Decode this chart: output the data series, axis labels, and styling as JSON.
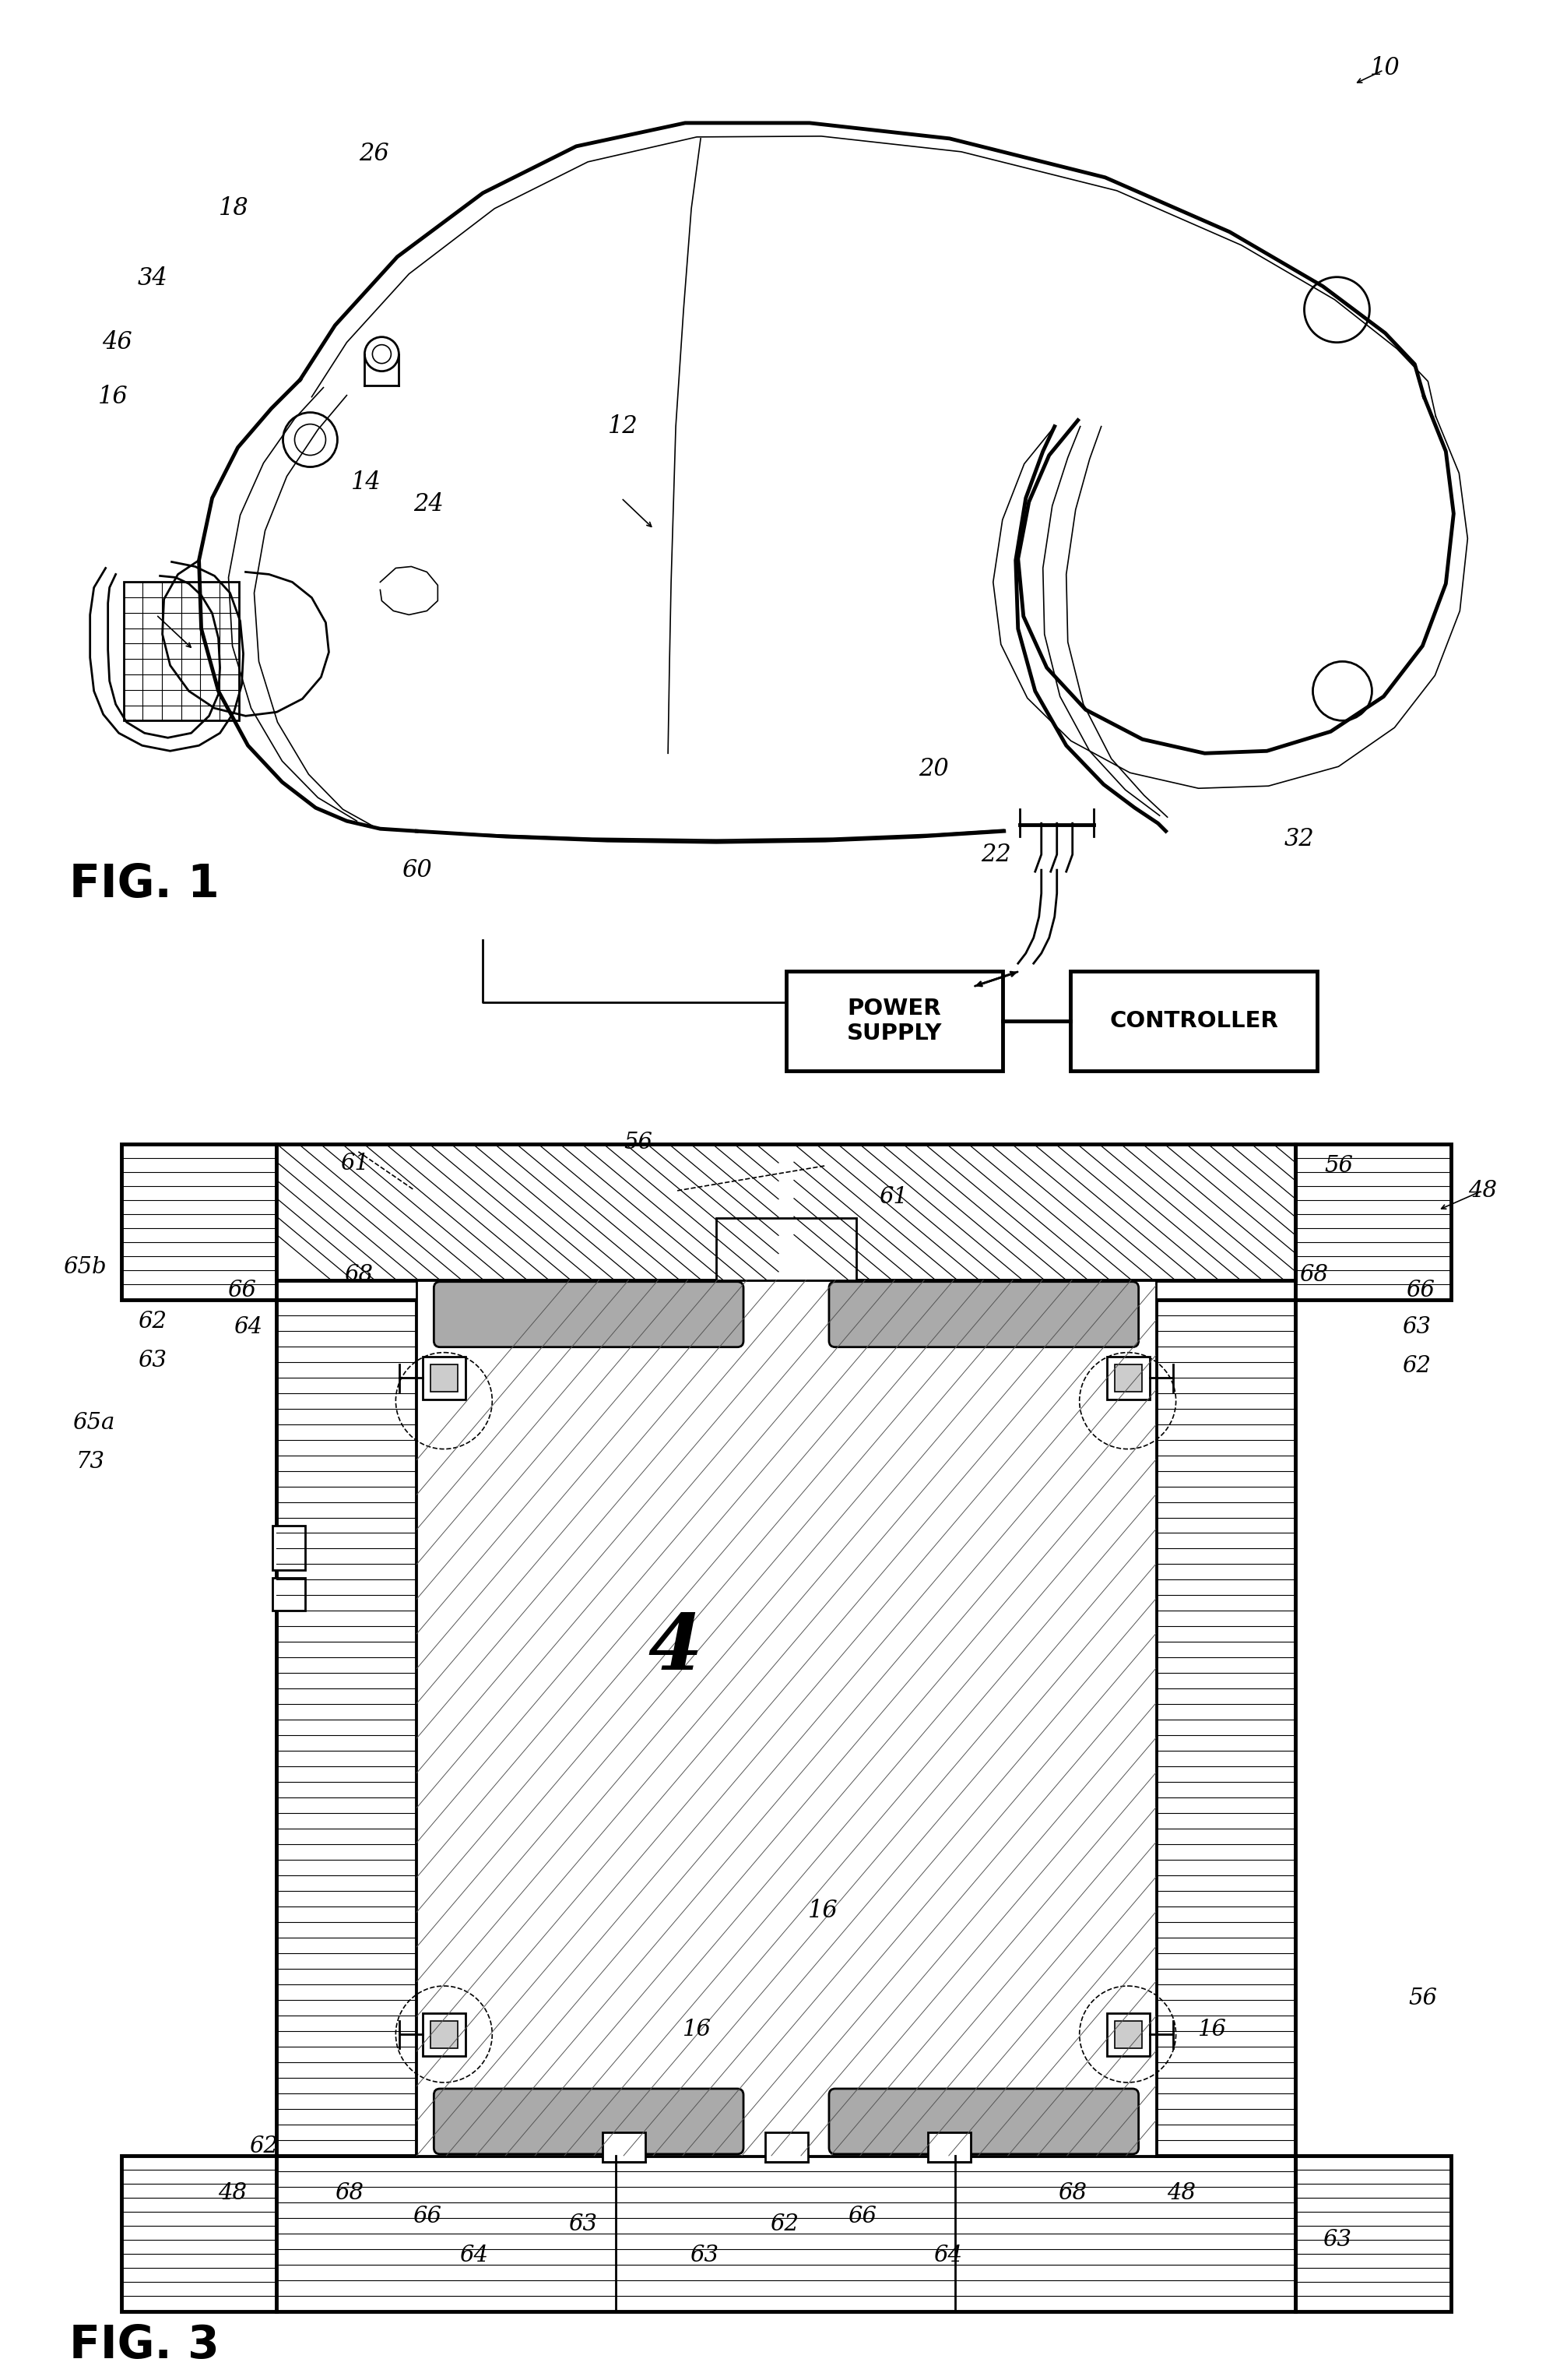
{
  "fig_width": 20.04,
  "fig_height": 30.56,
  "bg_color": "#ffffff",
  "lc": "#000000",
  "fig1_label": "FIG. 1",
  "fig3_label": "FIG. 3",
  "power_supply_text": "POWER\nSUPPLY",
  "controller_text": "CONTROLLER",
  "fig1_refs": [
    [
      1780,
      88,
      "10"
    ],
    [
      480,
      198,
      "26"
    ],
    [
      300,
      268,
      "18"
    ],
    [
      195,
      358,
      "34"
    ],
    [
      150,
      440,
      "46"
    ],
    [
      145,
      510,
      "16"
    ],
    [
      800,
      548,
      "12"
    ],
    [
      470,
      620,
      "14"
    ],
    [
      550,
      648,
      "24"
    ],
    [
      1200,
      988,
      "20"
    ],
    [
      1280,
      1098,
      "22"
    ],
    [
      1670,
      1078,
      "32"
    ],
    [
      535,
      1118,
      "60"
    ]
  ],
  "fig3_refs": [
    [
      455,
      1495,
      "61"
    ],
    [
      820,
      1468,
      "56"
    ],
    [
      1905,
      1530,
      "48"
    ],
    [
      108,
      1628,
      "65b"
    ],
    [
      195,
      1698,
      "62"
    ],
    [
      195,
      1748,
      "63"
    ],
    [
      120,
      1828,
      "65a"
    ],
    [
      115,
      1878,
      "73"
    ],
    [
      310,
      1658,
      "66"
    ],
    [
      318,
      1705,
      "64"
    ],
    [
      460,
      1638,
      "68"
    ],
    [
      1148,
      1538,
      "61"
    ],
    [
      1825,
      1658,
      "66"
    ],
    [
      1820,
      1705,
      "63"
    ],
    [
      1820,
      1755,
      "62"
    ],
    [
      1688,
      1638,
      "68"
    ],
    [
      1720,
      1498,
      "56"
    ],
    [
      298,
      2818,
      "48"
    ],
    [
      448,
      2818,
      "68"
    ],
    [
      548,
      2848,
      "66"
    ],
    [
      608,
      2898,
      "64"
    ],
    [
      748,
      2858,
      "63"
    ],
    [
      905,
      2898,
      "63"
    ],
    [
      1008,
      2858,
      "62"
    ],
    [
      1108,
      2848,
      "66"
    ],
    [
      1218,
      2898,
      "64"
    ],
    [
      1378,
      2818,
      "68"
    ],
    [
      1518,
      2818,
      "48"
    ],
    [
      1718,
      2878,
      "63"
    ],
    [
      338,
      2758,
      "62"
    ],
    [
      895,
      2608,
      "16"
    ],
    [
      1558,
      2608,
      "16"
    ],
    [
      1828,
      2568,
      "56"
    ]
  ]
}
